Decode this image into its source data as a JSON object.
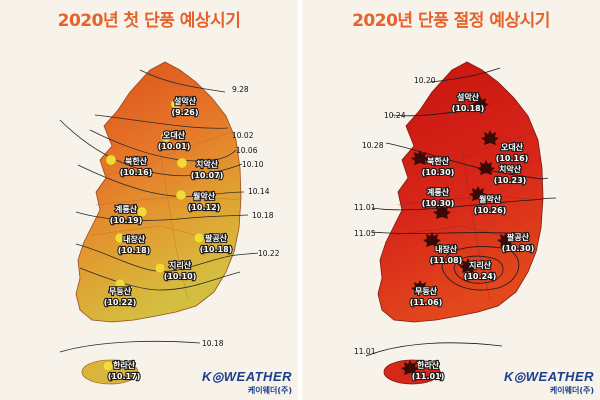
{
  "maps": [
    {
      "title": "2020년 첫 단풍 예상시기",
      "mountains": [
        {
          "name": "설악산",
          "date": "(9.26)"
        },
        {
          "name": "오대산",
          "date": "(10.01)"
        },
        {
          "name": "북한산",
          "date": "(10.16)"
        },
        {
          "name": "치악산",
          "date": "(10.07)"
        },
        {
          "name": "월악산",
          "date": "(10.12)"
        },
        {
          "name": "계룡산",
          "date": "(10.19)"
        },
        {
          "name": "팔공산",
          "date": "(10.18)"
        },
        {
          "name": "내장산",
          "date": "(10.18)"
        },
        {
          "name": "지리산",
          "date": "(10.10)"
        },
        {
          "name": "무등산",
          "date": "(10.22)"
        },
        {
          "name": "한라산",
          "date": "(10.17)"
        }
      ],
      "isolines": [
        "9.28",
        "10.02",
        "10.06",
        "10.10",
        "10.14",
        "10.18",
        "10.22",
        "10.18"
      ],
      "marker": "yellow-leaf-dot",
      "colors": {
        "north": "#e05a1e",
        "middle": "#e88a2a",
        "south": "#d9b93a"
      }
    },
    {
      "title": "2020년 단풍 절정 예상시기",
      "mountains": [
        {
          "name": "설악산",
          "date": "(10.18)"
        },
        {
          "name": "오대산",
          "date": "(10.16)"
        },
        {
          "name": "북한산",
          "date": "(10.30)"
        },
        {
          "name": "치악산",
          "date": "(10.23)"
        },
        {
          "name": "계룡산",
          "date": "(10.30)"
        },
        {
          "name": "월악산",
          "date": "(10.26)"
        },
        {
          "name": "팔공산",
          "date": "(10.30)"
        },
        {
          "name": "내장산",
          "date": "(11.08)"
        },
        {
          "name": "지리산",
          "date": "(10.24)"
        },
        {
          "name": "무등산",
          "date": "(11.06)"
        },
        {
          "name": "한라산",
          "date": "(11.01)"
        }
      ],
      "isolines": [
        "10.20",
        "10.24",
        "10.28",
        "11.01",
        "11.05",
        "11.01"
      ],
      "marker": "maple-leaf-icon",
      "colors": {
        "north": "#cf1a12",
        "middle": "#d8261a",
        "south": "#e34a1e"
      }
    }
  ],
  "brand": {
    "logo": "K◎WEATHER",
    "sub": "케이웨더(주)"
  }
}
